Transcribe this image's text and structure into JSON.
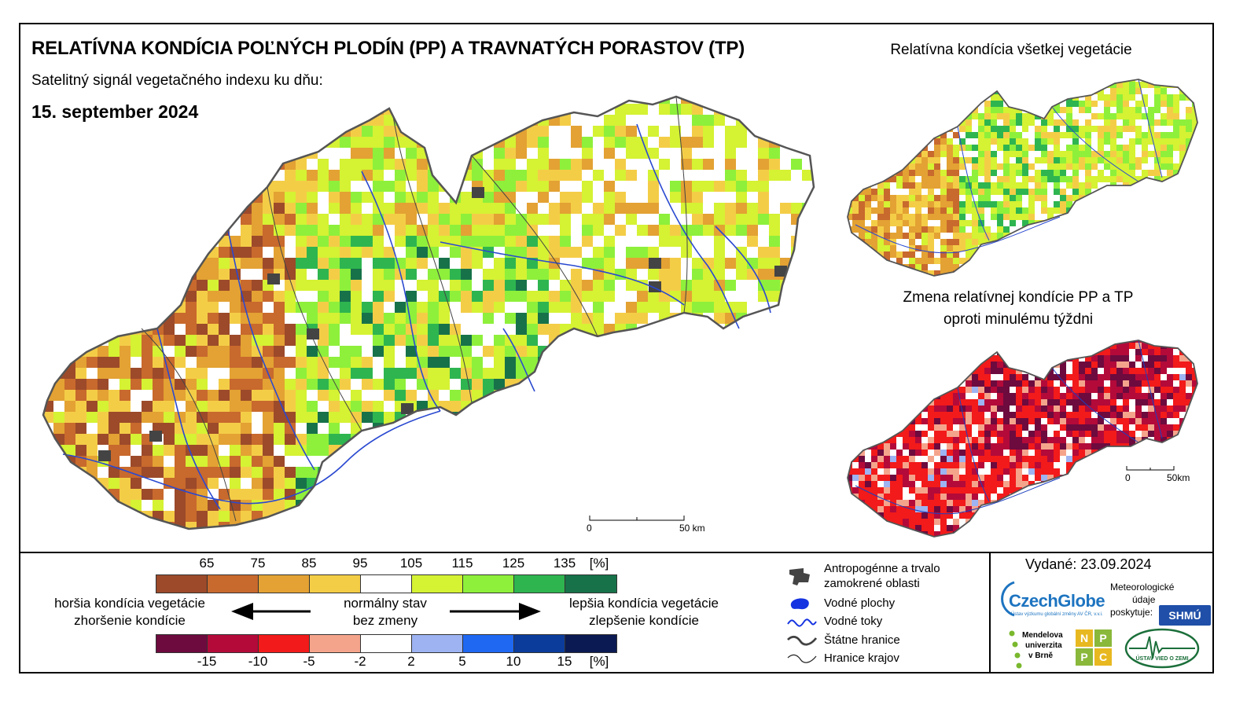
{
  "header": {
    "title": "RELATÍVNA KONDÍCIA POĽNÝCH PLODÍN (PP) A TRAVNATÝCH PORASTOV (TP)",
    "subtitle": "Satelitný signál vegetačného indexu ku dňu:",
    "date": "15. september 2024"
  },
  "inset_top": {
    "title": "Relatívna kondícia všetkej vegetácie"
  },
  "inset_bottom": {
    "title_line1": "Zmena relatívnej kondície PP a TP",
    "title_line2": "oproti minulému týždni"
  },
  "main_scale": {
    "start": "0",
    "end": "50 km"
  },
  "inset_scale": {
    "start": "0",
    "end": "50km"
  },
  "condition_scale": {
    "ticks": [
      "65",
      "75",
      "85",
      "95",
      "105",
      "115",
      "125",
      "135",
      "[%]"
    ],
    "colors": [
      "#9c4a2a",
      "#c8692d",
      "#e3a233",
      "#f4cd47",
      "#ffffff",
      "#d5f233",
      "#8ef03b",
      "#2eb550",
      "#17724a"
    ]
  },
  "change_scale": {
    "ticks": [
      "-15",
      "-10",
      "-5",
      "-2",
      "2",
      "5",
      "10",
      "15",
      "[%]"
    ],
    "colors": [
      "#6d0a3e",
      "#b30a3a",
      "#f21a1a",
      "#f5a48c",
      "#ffffff",
      "#9db3f2",
      "#1f68f2",
      "#0b3c9c",
      "#0b1a52"
    ]
  },
  "legend_text": {
    "worse_line1": "horšia kondícia vegetácie",
    "worse_line2": "zhoršenie kondície",
    "normal_line1": "normálny stav",
    "normal_line2": "bez zmeny",
    "better_line1": "lepšia kondícia vegetácie",
    "better_line2": "zlepšenie kondície"
  },
  "symbol_legend": [
    {
      "icon": "urban-area-icon",
      "label": "Antropogénne a trvalo\nzamokrené oblasti"
    },
    {
      "icon": "water-body-icon",
      "label": "Vodné plochy"
    },
    {
      "icon": "river-icon",
      "label": "Vodné toky"
    },
    {
      "icon": "state-border-icon",
      "label": "Štátne hranice"
    },
    {
      "icon": "region-border-icon",
      "label": "Hranice krajov"
    }
  ],
  "issue": {
    "label": "Vydané: 23.09.2024"
  },
  "logos": {
    "czechglobe": "CzechGlobe",
    "czechglobe_sub": "Ústav výzkumu globální změny AV ČR, v.v.i.",
    "meteo_line1": "Meteorologické",
    "meteo_line2": "údaje",
    "meteo_line3": "poskytuje:",
    "shmu": "SHMÚ",
    "mendel_line1": "Mendelova",
    "mendel_line2": "univerzita",
    "mendel_line3": "v Brně",
    "npc": [
      "N",
      "P",
      "P",
      "C"
    ],
    "uvz": "ÚSTAV VIED O ZEMI"
  }
}
